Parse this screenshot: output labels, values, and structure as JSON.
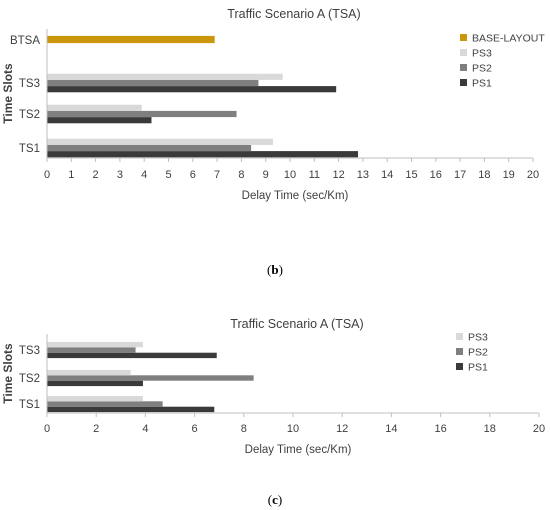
{
  "colors": {
    "ps1": "#3a3a3a",
    "ps2": "#7f7f7f",
    "ps3": "#d9d9d9",
    "base_layout": "#c9960c",
    "axis": "#bfbfbf",
    "text": "#404040"
  },
  "captions": {
    "b_open": "(",
    "b_letter": "b",
    "b_close": ")",
    "c_open": "(",
    "c_letter": "c",
    "c_close": ")"
  },
  "chart_data": [
    {
      "type": "bar",
      "orientation": "horizontal",
      "title": "Traffic Scenario A (TSA)",
      "xlabel": "Delay Time (sec/Km)",
      "ylabel": "Time Slots",
      "xlim": [
        0,
        20
      ],
      "x_tick_step": 1,
      "grid": false,
      "legend_position": "right",
      "categories": [
        "TS1",
        "TS2",
        "TS3",
        "BTSA"
      ],
      "series": [
        {
          "name": "PS1",
          "color_key": "ps1",
          "values": [
            12.8,
            4.3,
            11.9,
            null
          ]
        },
        {
          "name": "PS2",
          "color_key": "ps2",
          "values": [
            8.4,
            7.8,
            8.7,
            null
          ]
        },
        {
          "name": "PS3",
          "color_key": "ps3",
          "values": [
            9.3,
            3.9,
            9.7,
            null
          ]
        },
        {
          "name": "BASE-LAYOUT",
          "color_key": "base_layout",
          "values": [
            null,
            null,
            null,
            6.9
          ]
        }
      ],
      "legend_order": [
        "BASE-LAYOUT",
        "PS3",
        "PS2",
        "PS1"
      ]
    },
    {
      "type": "bar",
      "orientation": "horizontal",
      "title": "Traffic Scenario A (TSA)",
      "xlabel": "Delay Time (sec/Km)",
      "ylabel": "Time Slots",
      "xlim": [
        0,
        20
      ],
      "x_tick_step": 2,
      "grid": false,
      "legend_position": "right",
      "categories": [
        "TS1",
        "TS2",
        "TS3"
      ],
      "series": [
        {
          "name": "PS1",
          "color_key": "ps1",
          "values": [
            6.8,
            3.9,
            6.9
          ]
        },
        {
          "name": "PS2",
          "color_key": "ps2",
          "values": [
            4.7,
            8.4,
            3.6
          ]
        },
        {
          "name": "PS3",
          "color_key": "ps3",
          "values": [
            3.9,
            3.4,
            3.9
          ]
        }
      ],
      "legend_order": [
        "PS3",
        "PS2",
        "PS1"
      ]
    }
  ]
}
